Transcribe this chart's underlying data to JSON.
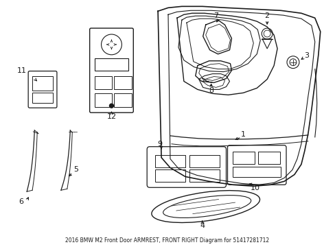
{
  "title": "2016 BMW M2 Front Door ARMREST, FRONT RIGHT Diagram for 51417281712",
  "bg_color": "#ffffff",
  "line_color": "#1a1a1a",
  "fig_width": 4.89,
  "fig_height": 3.6,
  "dpi": 100
}
